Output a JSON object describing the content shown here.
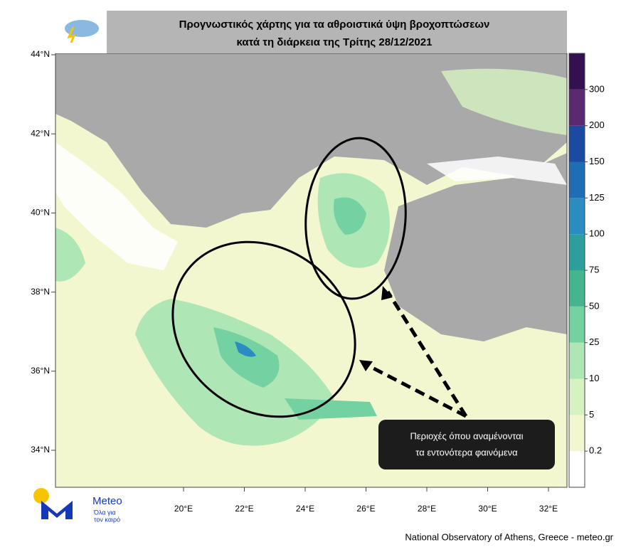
{
  "header": {
    "title_line1": "Προγνωστικός χάρτης για τα αθροιστικά ύψη βροχοπτώσεων",
    "title_line2": "κατά τη διάρκεια της Τρίτης 28/12/2021"
  },
  "map": {
    "lat_labels": [
      "44°N",
      "42°N",
      "40°N",
      "38°N",
      "36°N",
      "34°N"
    ],
    "lon_labels": [
      "20°E",
      "22°E",
      "24°E",
      "26°E",
      "28°E",
      "30°E",
      "32°E"
    ],
    "annotation_line1": "Περιοχές όπου αναμένονται",
    "annotation_line2": "τα εντονότερα φαινόμενα"
  },
  "colorbar": {
    "levels": [
      0.2,
      5,
      10,
      25,
      50,
      75,
      100,
      125,
      150,
      200,
      300
    ],
    "colors": [
      "#ffffff",
      "#f3f7cf",
      "#d6f2c0",
      "#aee7b5",
      "#74d1a2",
      "#45b58f",
      "#2c9e9c",
      "#2a8cc0",
      "#1f6db3",
      "#1a4aa2",
      "#5a2a6e",
      "#35104e"
    ]
  },
  "logo": {
    "brand": "Meteo",
    "tagline1": "Όλα για",
    "tagline2": "τον καιρό"
  },
  "footer": "National Observatory of Athens, Greece - meteo.gr"
}
